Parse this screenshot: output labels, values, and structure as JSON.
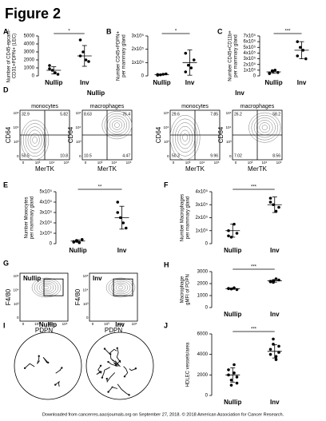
{
  "figure": {
    "title": "Figure 2",
    "panels": [
      "A",
      "B",
      "C",
      "D",
      "E",
      "F",
      "G",
      "H",
      "I",
      "J"
    ]
  },
  "chart_data": [
    {
      "type": "dot",
      "ylabel": [
        "Number of CD45-epcam-",
        "CD31+PDPN+ (LEC)"
      ],
      "categories": [
        "Nullip",
        "Inv"
      ],
      "values": [
        [
          1300,
          700,
          400,
          200,
          900
        ],
        [
          4500,
          3000,
          2000,
          1800,
          2500
        ]
      ],
      "mean": [
        700,
        2500
      ],
      "error": [
        450,
        1300
      ],
      "ylim": [
        0,
        5000
      ],
      "yticks": [
        0,
        1000,
        2000,
        3000,
        4000,
        5000
      ],
      "significance": "*",
      "color": "#000000"
    },
    {
      "type": "dot",
      "ylabel": [
        "Number CD45+PDPN+",
        "per mammary gland"
      ],
      "categories": [
        "Nullip",
        "Inv"
      ],
      "values": [
        [
          10000,
          8000,
          12000,
          15000,
          5000
        ],
        [
          170000,
          80000,
          60000,
          120000,
          30000
        ]
      ],
      "mean": [
        10000,
        100000
      ],
      "error": [
        4000,
        95000
      ],
      "ylim": [
        0,
        300000
      ],
      "yticks": [
        0,
        {
          "value": 100000,
          "label": "1x10⁵"
        },
        {
          "value": 200000,
          "label": "2x10⁵"
        },
        {
          "value": 300000,
          "label": "3x10⁵"
        }
      ],
      "significance": "*",
      "color": "#000000"
    },
    {
      "type": "dot",
      "ylabel": [
        "Number CD45+CD11b+",
        "per mammary gland"
      ],
      "categories": [
        "Nullip",
        "Inv"
      ],
      "values": [
        [
          50000,
          80000,
          100000,
          60000,
          40000,
          90000
        ],
        [
          600000,
          500000,
          450000,
          300000,
          350000
        ]
      ],
      "mean": [
        70000,
        450000
      ],
      "error": [
        25000,
        150000
      ],
      "ylim": [
        0,
        700000
      ],
      "yticks": [
        0,
        {
          "value": 100000,
          "label": "1x10⁵"
        },
        {
          "value": 200000,
          "label": "2x10⁵"
        },
        {
          "value": 300000,
          "label": "3x10⁵"
        },
        {
          "value": 400000,
          "label": "4x10⁵"
        },
        {
          "value": 500000,
          "label": "5x10⁵"
        },
        {
          "value": 600000,
          "label": "6x10⁵"
        },
        {
          "value": 700000,
          "label": "7x10⁵"
        }
      ],
      "significance": "***",
      "color": "#000000"
    },
    {
      "type": "dot",
      "ylabel": [
        "Number Monocytes",
        "per mammary gland"
      ],
      "categories": [
        "Nullip",
        "Inv"
      ],
      "values": [
        [
          20000,
          30000,
          10000,
          40000,
          15000,
          25000
        ],
        [
          400000,
          250000,
          200000,
          150000,
          300000
        ]
      ],
      "mean": [
        25000,
        250000
      ],
      "error": [
        12000,
        110000
      ],
      "ylim": [
        0,
        500000
      ],
      "yticks": [
        0,
        {
          "value": 100000,
          "label": "1x10⁵"
        },
        {
          "value": 200000,
          "label": "2x10⁵"
        },
        {
          "value": 300000,
          "label": "3x10⁵"
        },
        {
          "value": 400000,
          "label": "4x10⁵"
        },
        {
          "value": 500000,
          "label": "5x10⁵"
        }
      ],
      "significance": "**",
      "color": "#000000"
    },
    {
      "type": "dot",
      "ylabel": [
        "Number Macrophages",
        "per mammary gland"
      ],
      "categories": [
        "Nullip",
        "Inv"
      ],
      "values": [
        [
          100000,
          50000,
          150000,
          80000,
          60000
        ],
        [
          350000,
          300000,
          250000,
          280000,
          320000
        ]
      ],
      "mean": [
        100000,
        300000
      ],
      "error": [
        50000,
        60000
      ],
      "ylim": [
        0,
        400000
      ],
      "yticks": [
        0,
        {
          "value": 100000,
          "label": "1x10⁵"
        },
        {
          "value": 200000,
          "label": "2x10⁵"
        },
        {
          "value": 300000,
          "label": "3x10⁵"
        },
        {
          "value": 400000,
          "label": "4x10⁵"
        }
      ],
      "significance": "***",
      "color": "#000000"
    },
    {
      "type": "dot",
      "ylabel": [
        "Macrophage",
        "gMFI of PDPN"
      ],
      "categories": [
        "Nullip",
        "Inv"
      ],
      "values": [
        [
          1600,
          1550,
          1650,
          1500,
          1580
        ],
        [
          2200,
          2100,
          2400,
          2300,
          2150,
          2250
        ]
      ],
      "mean": [
        1580,
        2230
      ],
      "error": [
        60,
        110
      ],
      "ylim": [
        0,
        3000
      ],
      "yticks": [
        0,
        1000,
        2000,
        3000
      ],
      "significance": "***",
      "color": "#000000"
    },
    {
      "type": "dot",
      "ylabel": [
        "HDLEC vessels/area"
      ],
      "categories": [
        "Nullip",
        "Inv"
      ],
      "values": [
        [
          2000,
          1500,
          3000,
          1800,
          2500,
          1000,
          2200,
          1200
        ],
        [
          4500,
          5000,
          3800,
          4200,
          4000,
          5500,
          3500,
          4800
        ]
      ],
      "mean": [
        2000,
        4300
      ],
      "error": [
        700,
        650
      ],
      "ylim": [
        0,
        6000
      ],
      "yticks": [
        0,
        2000,
        4000,
        6000
      ],
      "significance": "***",
      "color": "#000000"
    }
  ],
  "flow_d": {
    "groups": [
      "Nullip",
      "Inv"
    ],
    "gates": [
      "monocytes",
      "macrophages"
    ],
    "ylabel": "CD64",
    "xlabel": "MerTK",
    "axis_ticks": [
      "10⁵",
      "10⁴",
      "10³",
      "0"
    ],
    "plots": [
      {
        "quadrants": [
          32.9,
          5.82,
          50.5,
          10.8
        ]
      },
      {
        "quadrants": [
          8.63,
          76.4,
          10.5,
          4.47
        ]
      },
      {
        "quadrants": [
          29.6,
          7.85,
          50.3,
          9.96
        ]
      },
      {
        "quadrants": [
          26.2,
          58.2,
          7.02,
          8.56
        ]
      }
    ]
  },
  "flow_g": {
    "groups": [
      "Nullip",
      "Inv"
    ],
    "ylabel": "F4/80",
    "xlabel": "PDPN",
    "axis_ticks": [
      "10⁵",
      "10⁴",
      "10³",
      "0"
    ]
  },
  "images_i": {
    "groups": [
      "Nullip",
      "Inv"
    ]
  },
  "footer": "Downloaded from cancerres.aacrjournals.org on September 27, 2018. © 2018 American Association for Cancer Research."
}
